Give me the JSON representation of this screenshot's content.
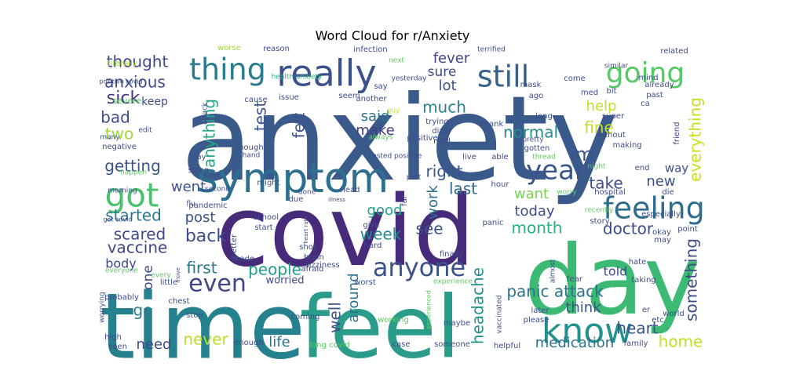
{
  "chart_data": {
    "type": "wordcloud",
    "title": "Word Cloud for r/Anxiety",
    "colormap": "viridis",
    "background": "#ffffff",
    "words": [
      {
        "text": "anxiety",
        "weight": 1.0,
        "color": "#3b5a8c"
      },
      {
        "text": "covid",
        "weight": 0.85,
        "color": "#472a7a"
      },
      {
        "text": "time",
        "weight": 0.8,
        "color": "#26818e"
      },
      {
        "text": "feel",
        "weight": 0.8,
        "color": "#2b9c8a"
      },
      {
        "text": "day",
        "weight": 0.78,
        "color": "#3cba73"
      },
      {
        "text": "symptom",
        "weight": 0.42,
        "color": "#2e6e8e"
      },
      {
        "text": "really",
        "weight": 0.38,
        "color": "#3b518b"
      },
      {
        "text": "thing",
        "weight": 0.32,
        "color": "#2b7b8e"
      },
      {
        "text": "know",
        "weight": 0.4,
        "color": "#21918c"
      },
      {
        "text": "got",
        "weight": 0.35,
        "color": "#4ac16d"
      },
      {
        "text": "going",
        "weight": 0.32,
        "color": "#58c765"
      },
      {
        "text": "feeling",
        "weight": 0.32,
        "color": "#2e6d8e"
      },
      {
        "text": "still",
        "weight": 0.32,
        "color": "#34618d"
      },
      {
        "text": "anyone",
        "weight": 0.28,
        "color": "#3b528b"
      },
      {
        "text": "year",
        "weight": 0.25,
        "color": "#39568c"
      },
      {
        "text": "even",
        "weight": 0.25,
        "color": "#404688"
      },
      {
        "text": "thought",
        "weight": 0.16,
        "color": "#3f4889"
      },
      {
        "text": "anxious",
        "weight": 0.15,
        "color": "#3e4a89"
      },
      {
        "text": "sick",
        "weight": 0.16,
        "color": "#46337f"
      },
      {
        "text": "bad",
        "weight": 0.15,
        "color": "#3e4c8a"
      },
      {
        "text": "two",
        "weight": 0.15,
        "color": "#9fda3a"
      },
      {
        "text": "getting",
        "weight": 0.15,
        "color": "#3a548c"
      },
      {
        "text": "started",
        "weight": 0.15,
        "color": "#2a778e"
      },
      {
        "text": "scared",
        "weight": 0.15,
        "color": "#3e4989"
      },
      {
        "text": "vaccine",
        "weight": 0.15,
        "color": "#3f4788"
      },
      {
        "text": "body",
        "weight": 0.12,
        "color": "#3f4788"
      },
      {
        "text": "first",
        "weight": 0.15,
        "color": "#2a788e"
      },
      {
        "text": "people",
        "weight": 0.15,
        "color": "#1f9e89"
      },
      {
        "text": "post",
        "weight": 0.14,
        "color": "#3b528b"
      },
      {
        "text": "back",
        "weight": 0.16,
        "color": "#3e4c8a"
      },
      {
        "text": "fever",
        "weight": 0.14,
        "color": "#404588"
      },
      {
        "text": "sure",
        "weight": 0.13,
        "color": "#3e4a89"
      },
      {
        "text": "lot",
        "weight": 0.14,
        "color": "#3b528b"
      },
      {
        "text": "much",
        "weight": 0.15,
        "color": "#26828e"
      },
      {
        "text": "said",
        "weight": 0.14,
        "color": "#2c738e"
      },
      {
        "text": "make",
        "weight": 0.14,
        "color": "#433e85"
      },
      {
        "text": "felt",
        "weight": 0.15,
        "color": "#3b528b"
      },
      {
        "text": "test",
        "weight": 0.15,
        "color": "#3b528b"
      },
      {
        "text": "anything",
        "weight": 0.15,
        "color": "#22a785"
      },
      {
        "text": "went",
        "weight": 0.13,
        "color": "#3b528b"
      },
      {
        "text": "right",
        "weight": 0.15,
        "color": "#3b528b"
      },
      {
        "text": "last",
        "weight": 0.15,
        "color": "#31688e"
      },
      {
        "text": "help",
        "weight": 0.14,
        "color": "#bddf26"
      },
      {
        "text": "normal",
        "weight": 0.15,
        "color": "#228c8d"
      },
      {
        "text": "fine",
        "weight": 0.15,
        "color": "#c2df23"
      },
      {
        "text": "im",
        "weight": 0.16,
        "color": "#3b528b"
      },
      {
        "text": "take",
        "weight": 0.15,
        "color": "#3e4a89"
      },
      {
        "text": "want",
        "weight": 0.14,
        "color": "#7ad151"
      },
      {
        "text": "new",
        "weight": 0.14,
        "color": "#3b528b"
      },
      {
        "text": "today",
        "weight": 0.14,
        "color": "#3e4c8a"
      },
      {
        "text": "month",
        "weight": 0.14,
        "color": "#2ab07f"
      },
      {
        "text": "doctor",
        "weight": 0.15,
        "color": "#3e4c8a"
      },
      {
        "text": "good",
        "weight": 0.14,
        "color": "#1fa187"
      },
      {
        "text": "week",
        "weight": 0.15,
        "color": "#228c8d"
      },
      {
        "text": "see",
        "weight": 0.14,
        "color": "#3b528b"
      },
      {
        "text": "work",
        "weight": 0.14,
        "color": "#2e6e8e"
      },
      {
        "text": "one",
        "weight": 0.13,
        "color": "#3e4c8a"
      },
      {
        "text": "go",
        "weight": 0.15,
        "color": "#277f8e"
      },
      {
        "text": "need",
        "weight": 0.14,
        "color": "#3e4c8a"
      },
      {
        "text": "never",
        "weight": 0.15,
        "color": "#bddf26"
      },
      {
        "text": "life",
        "weight": 0.14,
        "color": "#2c728e"
      },
      {
        "text": "well",
        "weight": 0.15,
        "color": "#3b528b"
      },
      {
        "text": "around",
        "weight": 0.14,
        "color": "#2c728e"
      },
      {
        "text": "headache",
        "weight": 0.15,
        "color": "#21918c"
      },
      {
        "text": "panic attack",
        "weight": 0.15,
        "color": "#2c728e"
      },
      {
        "text": "think",
        "weight": 0.14,
        "color": "#3b528b"
      },
      {
        "text": "heart",
        "weight": 0.15,
        "color": "#3b528b"
      },
      {
        "text": "told",
        "weight": 0.12,
        "color": "#3e4c8a"
      },
      {
        "text": "medication",
        "weight": 0.14,
        "color": "#2c728e"
      },
      {
        "text": "home",
        "weight": 0.15,
        "color": "#c2df23"
      },
      {
        "text": "something",
        "weight": 0.15,
        "color": "#3e4c8a"
      },
      {
        "text": "everything",
        "weight": 0.15,
        "color": "#c8e020"
      },
      {
        "text": "way",
        "weight": 0.11,
        "color": "#3e4c8a"
      },
      {
        "text": "worried",
        "weight": 0.11,
        "color": "#3e4c8a"
      },
      {
        "text": "keep",
        "weight": 0.11,
        "color": "#3e4c8a"
      },
      {
        "text": "literally",
        "weight": 0.08,
        "color": "#a5db36"
      },
      {
        "text": "positive covid",
        "weight": 0.06,
        "color": "#3e4c8a"
      },
      {
        "text": "severe",
        "weight": 0.07,
        "color": "#55c667"
      },
      {
        "text": "worse",
        "weight": 0.07,
        "color": "#9fda3a"
      },
      {
        "text": "reason",
        "weight": 0.07,
        "color": "#3e4c8a"
      },
      {
        "text": "health anxiety",
        "weight": 0.07,
        "color": "#2ab07f"
      },
      {
        "text": "infection",
        "weight": 0.07,
        "color": "#3e4c8a"
      },
      {
        "text": "terrified",
        "weight": 0.07,
        "color": "#3e4c8a"
      },
      {
        "text": "related",
        "weight": 0.07,
        "color": "#3e4c8a"
      },
      {
        "text": "next",
        "weight": 0.07,
        "color": "#5ec962"
      },
      {
        "text": "seem",
        "weight": 0.07,
        "color": "#3e4c8a"
      },
      {
        "text": "say",
        "weight": 0.07,
        "color": "#3e4c8a"
      },
      {
        "text": "yesterday",
        "weight": 0.07,
        "color": "#3e4c8a"
      },
      {
        "text": "another",
        "weight": 0.07,
        "color": "#3e4c8a"
      },
      {
        "text": "attack",
        "weight": 0.07,
        "color": "#3e4c8a"
      },
      {
        "text": "cause",
        "weight": 0.07,
        "color": "#3e4c8a"
      },
      {
        "text": "issue",
        "weight": 0.07,
        "color": "#3e4c8a"
      },
      {
        "text": "guy",
        "weight": 0.06,
        "color": "#c2df23"
      },
      {
        "text": "trying",
        "weight": 0.07,
        "color": "#3e4c8a"
      },
      {
        "text": "dizzy",
        "weight": 0.07,
        "color": "#3e4c8a"
      },
      {
        "text": "mild",
        "weight": 0.07,
        "color": "#3e4c8a"
      },
      {
        "text": "always",
        "weight": 0.07,
        "color": "#5ec962"
      },
      {
        "text": "positive",
        "weight": 0.07,
        "color": "#3e4c8a"
      },
      {
        "text": "mask",
        "weight": 0.07,
        "color": "#3e4c8a"
      },
      {
        "text": "ago",
        "weight": 0.07,
        "color": "#3e4c8a"
      },
      {
        "text": "thank",
        "weight": 0.07,
        "color": "#3e4c8a"
      },
      {
        "text": "pretty",
        "weight": 0.07,
        "color": "#3e4c8a"
      },
      {
        "text": "gotten",
        "weight": 0.07,
        "color": "#3e4c8a"
      },
      {
        "text": "thread",
        "weight": 0.07,
        "color": "#5ec962"
      },
      {
        "text": "come",
        "weight": 0.07,
        "color": "#3e4c8a"
      },
      {
        "text": "med",
        "weight": 0.07,
        "color": "#3e4c8a"
      },
      {
        "text": "similar",
        "weight": 0.07,
        "color": "#3e4c8a"
      },
      {
        "text": "already",
        "weight": 0.07,
        "color": "#3e4c8a"
      },
      {
        "text": "mind",
        "weight": 0.07,
        "color": "#3e4c8a"
      },
      {
        "text": "bit",
        "weight": 0.07,
        "color": "#3e4c8a"
      },
      {
        "text": "past",
        "weight": 0.07,
        "color": "#3e4c8a"
      },
      {
        "text": "ca",
        "weight": 0.07,
        "color": "#3e4c8a"
      },
      {
        "text": "super",
        "weight": 0.07,
        "color": "#3e4c8a"
      },
      {
        "text": "without",
        "weight": 0.07,
        "color": "#3e4c8a"
      },
      {
        "text": "long",
        "weight": 0.07,
        "color": "#3e4c8a"
      },
      {
        "text": "making",
        "weight": 0.07,
        "color": "#3e4c8a"
      },
      {
        "text": "friend",
        "weight": 0.07,
        "color": "#3e4c8a"
      },
      {
        "text": "edit",
        "weight": 0.07,
        "color": "#3e4c8a"
      },
      {
        "text": "many",
        "weight": 0.07,
        "color": "#3e4c8a"
      },
      {
        "text": "negative",
        "weight": 0.07,
        "color": "#3e4c8a"
      },
      {
        "text": "though",
        "weight": 0.07,
        "color": "#3e4c8a"
      },
      {
        "text": "hand",
        "weight": 0.07,
        "color": "#3e4c8a"
      },
      {
        "text": "stay",
        "weight": 0.07,
        "color": "#3e4c8a"
      },
      {
        "text": "tested positive",
        "weight": 0.07,
        "color": "#3e4c8a"
      },
      {
        "text": "live",
        "weight": 0.07,
        "color": "#3e4c8a"
      },
      {
        "text": "able",
        "weight": 0.07,
        "color": "#3e4c8a"
      },
      {
        "text": "happen",
        "weight": 0.07,
        "color": "#5ec962"
      },
      {
        "text": "sleep",
        "weight": 0.07,
        "color": "#3e4c8a"
      },
      {
        "text": "might",
        "weight": 0.07,
        "color": "#3e4c8a"
      },
      {
        "text": "part",
        "weight": 0.07,
        "color": "#3e4c8a"
      },
      {
        "text": "hour",
        "weight": 0.07,
        "color": "#3e4c8a"
      },
      {
        "text": "night",
        "weight": 0.07,
        "color": "#5ec962"
      },
      {
        "text": "end",
        "weight": 0.07,
        "color": "#3e4c8a"
      },
      {
        "text": "second",
        "weight": 0.07,
        "color": "#3e4c8a"
      },
      {
        "text": "done",
        "weight": 0.07,
        "color": "#3e4c8a"
      },
      {
        "text": "head",
        "weight": 0.07,
        "color": "#3e4c8a"
      },
      {
        "text": "worry",
        "weight": 0.07,
        "color": "#5ec962"
      },
      {
        "text": "hospital",
        "weight": 0.07,
        "color": "#3e4c8a"
      },
      {
        "text": "die",
        "weight": 0.07,
        "color": "#3e4c8a"
      },
      {
        "text": "morning",
        "weight": 0.07,
        "color": "#3e4c8a"
      },
      {
        "text": "due",
        "weight": 0.07,
        "color": "#3e4c8a"
      },
      {
        "text": "illness",
        "weight": 0.06,
        "color": "#3e4c8a"
      },
      {
        "text": "flu",
        "weight": 0.07,
        "color": "#3e4c8a"
      },
      {
        "text": "got covid",
        "weight": 0.07,
        "color": "#3e4c8a"
      },
      {
        "text": "pandemic",
        "weight": 0.07,
        "color": "#3e4c8a"
      },
      {
        "text": "school",
        "weight": 0.07,
        "color": "#3e4c8a"
      },
      {
        "text": "start",
        "weight": 0.07,
        "color": "#3e4c8a"
      },
      {
        "text": "give",
        "weight": 0.07,
        "color": "#3e4c8a"
      },
      {
        "text": "far",
        "weight": 0.07,
        "color": "#3e4c8a"
      },
      {
        "text": "panic",
        "weight": 0.07,
        "color": "#3e4c8a"
      },
      {
        "text": "recently",
        "weight": 0.07,
        "color": "#5ec962"
      },
      {
        "text": "especially",
        "weight": 0.07,
        "color": "#3e4c8a"
      },
      {
        "text": "story",
        "weight": 0.07,
        "color": "#3e4c8a"
      },
      {
        "text": "okay",
        "weight": 0.07,
        "color": "#3e4c8a"
      },
      {
        "text": "point",
        "weight": 0.07,
        "color": "#3e4c8a"
      },
      {
        "text": "may",
        "weight": 0.07,
        "color": "#3e4c8a"
      },
      {
        "text": "heart rate",
        "weight": 0.06,
        "color": "#3e4c8a"
      },
      {
        "text": "shot",
        "weight": 0.07,
        "color": "#3e4c8a"
      },
      {
        "text": "hard",
        "weight": 0.07,
        "color": "#3e4c8a"
      },
      {
        "text": "finally",
        "weight": 0.07,
        "color": "#3e4c8a"
      },
      {
        "text": "better",
        "weight": 0.07,
        "color": "#3e4c8a"
      },
      {
        "text": "brain",
        "weight": 0.07,
        "color": "#3e4c8a"
      },
      {
        "text": "dizziness",
        "weight": 0.07,
        "color": "#3e4c8a"
      },
      {
        "text": "made",
        "weight": 0.07,
        "color": "#3e4c8a"
      },
      {
        "text": "afraid",
        "weight": 0.07,
        "color": "#3e4c8a"
      },
      {
        "text": "worst",
        "weight": 0.07,
        "color": "#3e4c8a"
      },
      {
        "text": "experience",
        "weight": 0.07,
        "color": "#5ec962"
      },
      {
        "text": "almost",
        "weight": 0.07,
        "color": "#3e4c8a"
      },
      {
        "text": "fear",
        "weight": 0.07,
        "color": "#3e4c8a"
      },
      {
        "text": "hate",
        "weight": 0.07,
        "color": "#3e4c8a"
      },
      {
        "text": "taking",
        "weight": 0.07,
        "color": "#3e4c8a"
      },
      {
        "text": "everyone",
        "weight": 0.07,
        "color": "#5ec962"
      },
      {
        "text": "every",
        "weight": 0.07,
        "color": "#5ec962"
      },
      {
        "text": "move",
        "weight": 0.06,
        "color": "#3e4c8a"
      },
      {
        "text": "little",
        "weight": 0.07,
        "color": "#3e4c8a"
      },
      {
        "text": "probably",
        "weight": 0.07,
        "color": "#3e4c8a"
      },
      {
        "text": "worrying",
        "weight": 0.07,
        "color": "#3e4c8a"
      },
      {
        "text": "chest",
        "weight": 0.07,
        "color": "#3e4c8a"
      },
      {
        "text": "stop",
        "weight": 0.07,
        "color": "#3e4c8a"
      },
      {
        "text": "coming",
        "weight": 0.07,
        "color": "#3e4c8a"
      },
      {
        "text": "working",
        "weight": 0.07,
        "color": "#5ec962"
      },
      {
        "text": "experienced",
        "weight": 0.06,
        "color": "#5ec962"
      },
      {
        "text": "maybe",
        "weight": 0.07,
        "color": "#3e4c8a"
      },
      {
        "text": "vaccinated",
        "weight": 0.07,
        "color": "#3e4c8a"
      },
      {
        "text": "please",
        "weight": 0.07,
        "color": "#3e4c8a"
      },
      {
        "text": "later",
        "weight": 0.07,
        "color": "#3e4c8a"
      },
      {
        "text": "er",
        "weight": 0.07,
        "color": "#3e4c8a"
      },
      {
        "text": "world",
        "weight": 0.07,
        "color": "#3e4c8a"
      },
      {
        "text": "etc",
        "weight": 0.07,
        "color": "#3e4c8a"
      },
      {
        "text": "high",
        "weight": 0.07,
        "color": "#3e4c8a"
      },
      {
        "text": "seen",
        "weight": 0.07,
        "color": "#3e4c8a"
      },
      {
        "text": "enough",
        "weight": 0.07,
        "color": "#3e4c8a"
      },
      {
        "text": "long covid",
        "weight": 0.07,
        "color": "#5ec962"
      },
      {
        "text": "case",
        "weight": 0.07,
        "color": "#3e4c8a"
      },
      {
        "text": "someone",
        "weight": 0.07,
        "color": "#3e4c8a"
      },
      {
        "text": "helpful",
        "weight": 0.07,
        "color": "#3e4c8a"
      },
      {
        "text": "family",
        "weight": 0.07,
        "color": "#3e4c8a"
      }
    ]
  }
}
